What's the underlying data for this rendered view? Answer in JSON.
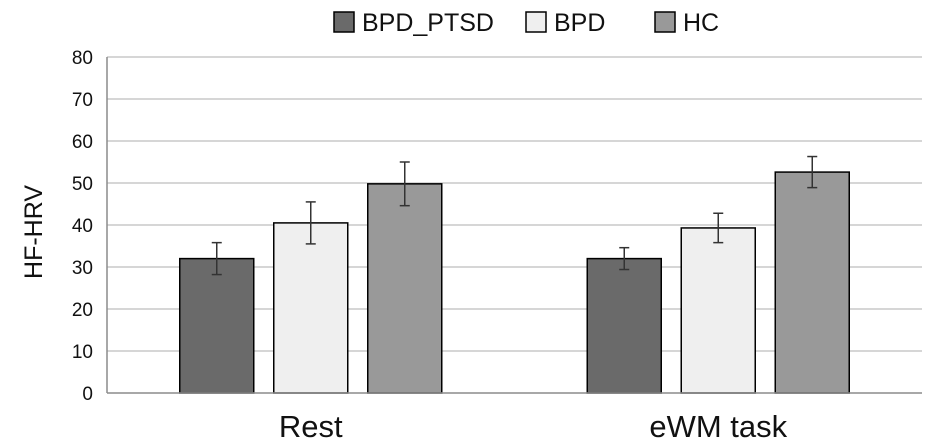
{
  "chart_data": {
    "type": "bar",
    "categories": [
      "Rest",
      "eWM task"
    ],
    "series": [
      {
        "name": "BPD_PTSD",
        "values": [
          32,
          32
        ],
        "errors": [
          3.8,
          2.6
        ],
        "color": "#6a6a6a"
      },
      {
        "name": "BPD",
        "values": [
          40.5,
          39.3
        ],
        "errors": [
          5.0,
          3.5
        ],
        "color": "#efefef"
      },
      {
        "name": "HC",
        "values": [
          49.8,
          52.6
        ],
        "errors": [
          5.2,
          3.7
        ],
        "color": "#999999"
      }
    ],
    "ylabel": "HF-HRV",
    "ylim": [
      0,
      80
    ],
    "yticks": [
      0,
      10,
      20,
      30,
      40,
      50,
      60,
      70,
      80
    ],
    "grid": true,
    "legend_position": "top-center"
  }
}
